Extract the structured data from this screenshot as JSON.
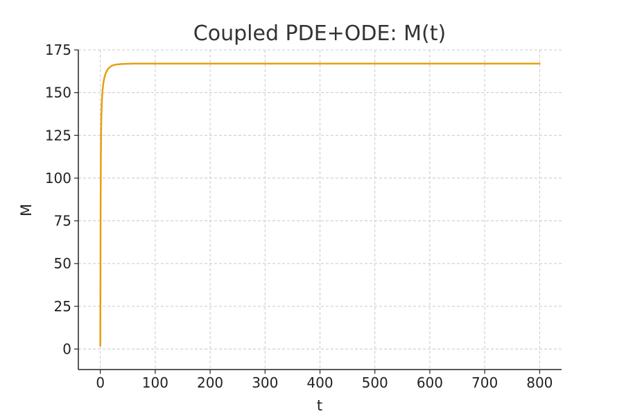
{
  "chart_data": {
    "type": "line",
    "title": "Coupled PDE+ODE: M(t)",
    "xlabel": "t",
    "ylabel": "M",
    "xlim": [
      -40,
      840
    ],
    "ylim": [
      -12,
      175
    ],
    "xticks": [
      0,
      100,
      200,
      300,
      400,
      500,
      600,
      700,
      800
    ],
    "yticks": [
      0,
      25,
      50,
      75,
      100,
      125,
      150,
      175
    ],
    "grid": true,
    "grid_style": "dashed",
    "series": [
      {
        "color": "#E5A00D",
        "x": [
          0,
          0.5,
          1,
          1.5,
          2,
          3,
          4,
          5,
          6,
          8,
          10,
          12,
          15,
          20,
          25,
          30,
          40,
          50,
          60,
          80,
          100,
          150,
          200,
          300,
          400,
          500,
          600,
          700,
          800
        ],
        "y": [
          2,
          80,
          112,
          128,
          137,
          146,
          151,
          154,
          156.5,
          159.5,
          161.5,
          162.8,
          164.2,
          165.6,
          166.2,
          166.5,
          166.8,
          166.9,
          167,
          167,
          167,
          167,
          167,
          167,
          167,
          167,
          167,
          167,
          167
        ]
      }
    ]
  }
}
